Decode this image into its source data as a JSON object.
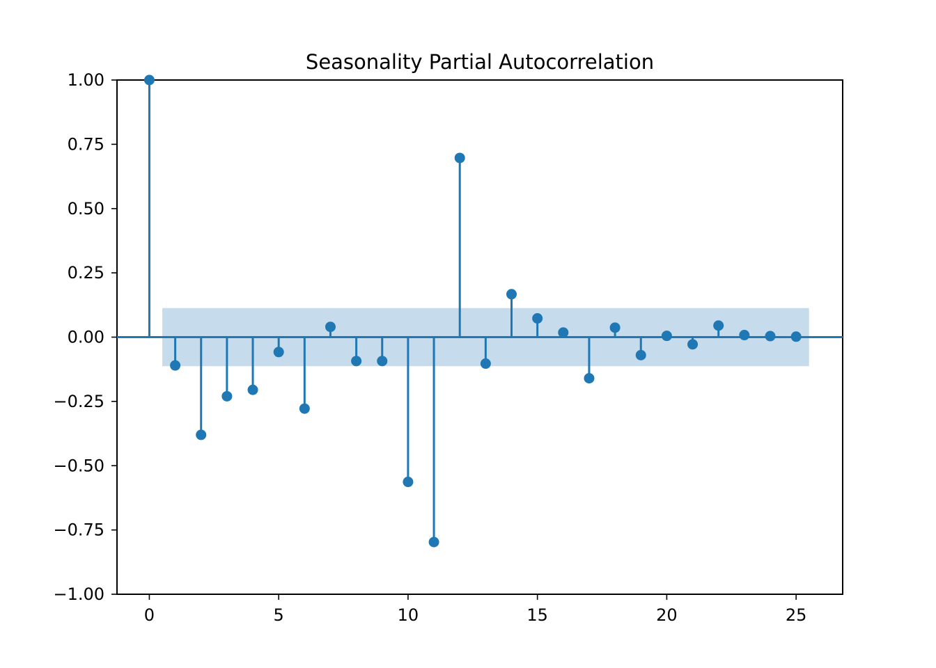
{
  "chart_data": {
    "type": "stem",
    "title": "Seasonality Partial Autocorrelation",
    "xlabel": "",
    "ylabel": "",
    "xlim": [
      -1.25,
      26.8
    ],
    "ylim": [
      -1.0,
      1.0
    ],
    "x_ticks": [
      0,
      5,
      10,
      15,
      20,
      25
    ],
    "x_tick_labels": [
      "0",
      "5",
      "10",
      "15",
      "20",
      "25"
    ],
    "y_ticks": [
      1.0,
      0.75,
      0.5,
      0.25,
      0.0,
      -0.25,
      -0.5,
      -0.75,
      -1.0
    ],
    "y_tick_labels": [
      "1.00",
      "0.75",
      "0.50",
      "0.25",
      "0.00",
      "−0.25",
      "−0.50",
      "−0.75",
      "−1.00"
    ],
    "grid": false,
    "confidence_band": {
      "x_start": 0.5,
      "x_end": 25.5,
      "lower": -0.113,
      "upper": 0.113
    },
    "colors": {
      "stem": "#1f77b4",
      "band": "#c6dbec",
      "axis": "#000000"
    },
    "lags": [
      0,
      1,
      2,
      3,
      4,
      5,
      6,
      7,
      8,
      9,
      10,
      11,
      12,
      13,
      14,
      15,
      16,
      17,
      18,
      19,
      20,
      21,
      22,
      23,
      24,
      25
    ],
    "values": [
      1.0,
      -0.11,
      -0.38,
      -0.23,
      -0.205,
      -0.058,
      -0.278,
      0.04,
      -0.093,
      -0.093,
      -0.563,
      -0.797,
      0.697,
      -0.103,
      0.167,
      0.073,
      0.018,
      -0.16,
      0.037,
      -0.07,
      0.005,
      -0.028,
      0.045,
      0.008,
      0.004,
      0.002
    ]
  }
}
